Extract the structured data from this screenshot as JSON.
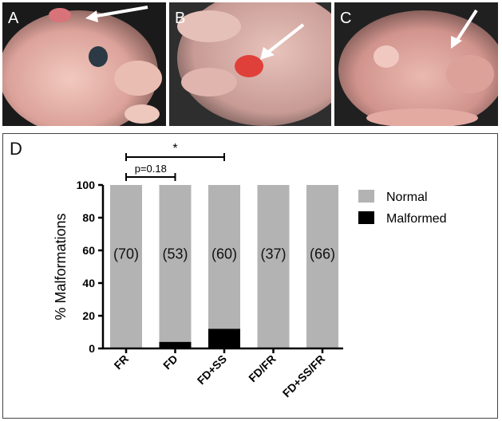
{
  "panels": {
    "a": {
      "letter": "A"
    },
    "b": {
      "letter": "B"
    },
    "c": {
      "letter": "C"
    },
    "d": {
      "letter": "D"
    }
  },
  "colors": {
    "normal": "#b3b3b3",
    "malformed": "#000000"
  },
  "chart_data": {
    "type": "bar",
    "stacked": true,
    "categories": [
      "FR",
      "FD",
      "FD+SS",
      "FD/FR",
      "FD+SS/FR"
    ],
    "series": [
      {
        "name": "Normal",
        "values": [
          100,
          96,
          88,
          100,
          100
        ]
      },
      {
        "name": "Malformed",
        "values": [
          0,
          4,
          12,
          0,
          0
        ]
      }
    ],
    "bar_labels": [
      "(70)",
      "(53)",
      "(60)",
      "(37)",
      "(66)"
    ],
    "ylabel": "% Malformations",
    "ylim": [
      0,
      100
    ],
    "yticks": [
      0,
      20,
      40,
      60,
      80,
      100
    ],
    "legend": {
      "position": "right",
      "items": [
        "Normal",
        "Malformed"
      ]
    },
    "grid": false,
    "comparisons": [
      {
        "from": "FR",
        "to": "FD",
        "label": "p=0.18"
      },
      {
        "from": "FR",
        "to": "FD+SS",
        "label": "*"
      }
    ]
  }
}
